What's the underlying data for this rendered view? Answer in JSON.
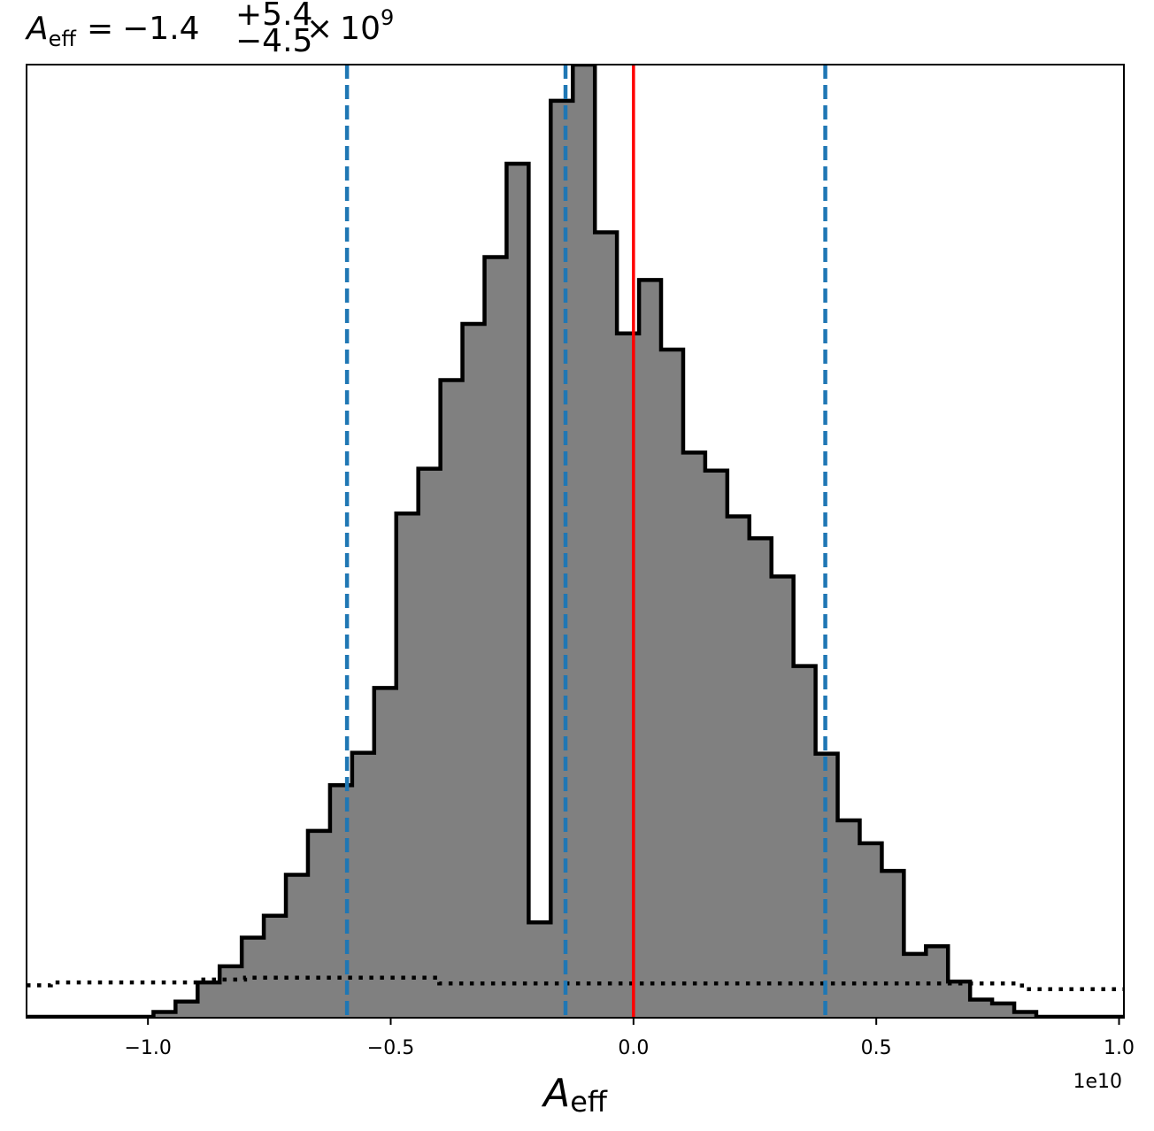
{
  "chart_data": {
    "type": "bar",
    "title": {
      "symbol": "A",
      "subscript": "eff",
      "equals": "=",
      "median": "−1.4",
      "upper": "+5.4",
      "lower": "−4.5",
      "times": "×",
      "base": "10",
      "exponent": "9"
    },
    "xlabel": {
      "symbol": "A",
      "subscript": "eff"
    },
    "ylabel": "",
    "offset_text": "1e10",
    "xlim": [
      -1.25,
      1.01
    ],
    "ylim": [
      0,
      1.0
    ],
    "xticks": [
      -1.0,
      -0.5,
      0.0,
      0.5,
      1.0
    ],
    "xtick_labels": [
      "−1.0",
      "−0.5",
      "0.0",
      "0.5",
      "1.0"
    ],
    "y_ticks_shown": false,
    "grid": false,
    "histogram": {
      "bin_edges": [
        -0.9886,
        -0.9432,
        -0.8977,
        -0.8523,
        -0.8068,
        -0.7614,
        -0.7159,
        -0.6705,
        -0.625,
        -0.5795,
        -0.5341,
        -0.4886,
        -0.4432,
        -0.3977,
        -0.3523,
        -0.3068,
        -0.2614,
        -0.2159,
        -0.1705,
        -0.125,
        -0.0795,
        -0.0341,
        0.0114,
        0.0568,
        0.1023,
        0.1477,
        0.1932,
        0.2386,
        0.2841,
        0.3295,
        0.375,
        0.4205,
        0.4659,
        0.5114,
        0.5568,
        0.6023,
        0.6477,
        0.6932,
        0.7386,
        0.7841,
        0.8295
      ],
      "values": [
        0.006,
        0.017,
        0.037,
        0.054,
        0.084,
        0.107,
        0.15,
        0.196,
        0.244,
        0.278,
        0.346,
        0.529,
        0.576,
        0.669,
        0.728,
        0.798,
        0.896,
        0.1,
        0.962,
        1.0,
        0.824,
        0.718,
        0.774,
        0.701,
        0.593,
        0.574,
        0.526,
        0.503,
        0.463,
        0.369,
        0.277,
        0.207,
        0.183,
        0.154,
        0.067,
        0.075,
        0.038,
        0.019,
        0.015,
        0.006
      ],
      "fill_color": "#808080",
      "edge_color": "#000000"
    },
    "prior": {
      "style": "dotted",
      "color": "#000000",
      "x": [
        -1.25,
        -1.2,
        -1.2,
        -0.9,
        -0.9,
        -0.8,
        -0.8,
        -0.4,
        -0.4,
        0.8,
        0.8,
        1.01
      ],
      "y": [
        0.034,
        0.034,
        0.037,
        0.037,
        0.04,
        0.04,
        0.042,
        0.042,
        0.036,
        0.036,
        0.03,
        0.03
      ]
    },
    "vlines": [
      {
        "name": "lower-quantile",
        "x": -0.59,
        "color": "#1f77b4",
        "style": "dashed"
      },
      {
        "name": "median",
        "x": -0.14,
        "color": "#1f77b4",
        "style": "dashed"
      },
      {
        "name": "upper-quantile",
        "x": 0.395,
        "color": "#1f77b4",
        "style": "dashed"
      },
      {
        "name": "truth",
        "x": 0.0,
        "color": "#ff0000",
        "style": "solid"
      }
    ]
  }
}
